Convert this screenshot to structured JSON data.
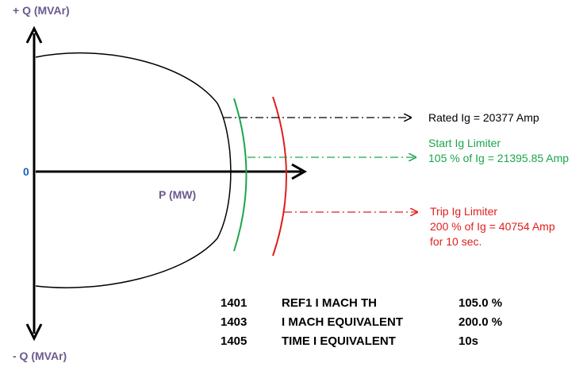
{
  "axes": {
    "q_positive": "+ Q (MVAr)",
    "q_negative": "- Q (MVAr)",
    "p_axis": "P (MW)",
    "origin": "0"
  },
  "annotations": {
    "rated": {
      "text": "Rated Ig = 20377 Amp",
      "color": "#000000"
    },
    "start": {
      "line1": "Start  Ig Limiter",
      "line2": "105 % of Ig = 21395.85 Amp",
      "color": "#1aa64a"
    },
    "trip": {
      "line1": "Trip  Ig Limiter",
      "line2": "200 % of Ig = 40754 Amp",
      "line3": "for 10 sec.",
      "color": "#e01e1e"
    }
  },
  "parameters": [
    {
      "code": "1401",
      "name": "REF1 I MACH TH",
      "value": "105.0 %"
    },
    {
      "code": "1403",
      "name": "I MACH EQUIVALENT",
      "value": "200.0 %"
    },
    {
      "code": "1405",
      "name": "TIME I EQUIVALENT",
      "value": "10s"
    }
  ],
  "colors": {
    "origin": "#1f5fbf",
    "axis_label": "#6b5a8e",
    "curve": "#000000"
  }
}
